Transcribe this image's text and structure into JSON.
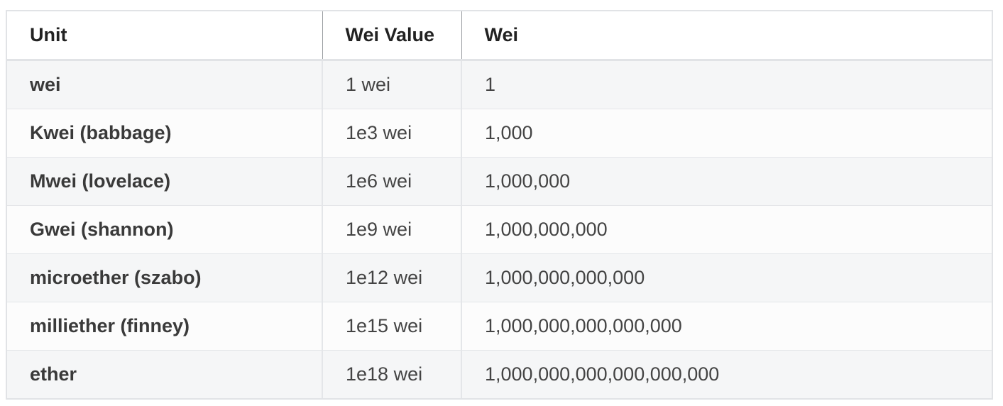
{
  "table": {
    "headers": {
      "unit": "Unit",
      "wei_value": "Wei Value",
      "wei": "Wei"
    },
    "rows": [
      {
        "unit": "wei",
        "wei_value": "1 wei",
        "wei": "1"
      },
      {
        "unit": "Kwei (babbage)",
        "wei_value": "1e3 wei",
        "wei": "1,000"
      },
      {
        "unit": "Mwei (lovelace)",
        "wei_value": "1e6 wei",
        "wei": "1,000,000"
      },
      {
        "unit": "Gwei (shannon)",
        "wei_value": "1e9 wei",
        "wei": "1,000,000,000"
      },
      {
        "unit": "microether (szabo)",
        "wei_value": "1e12 wei",
        "wei": "1,000,000,000,000"
      },
      {
        "unit": "milliether (finney)",
        "wei_value": "1e15 wei",
        "wei": "1,000,000,000,000,000"
      },
      {
        "unit": "ether",
        "wei_value": "1e18 wei",
        "wei": "1,000,000,000,000,000,000"
      }
    ]
  }
}
